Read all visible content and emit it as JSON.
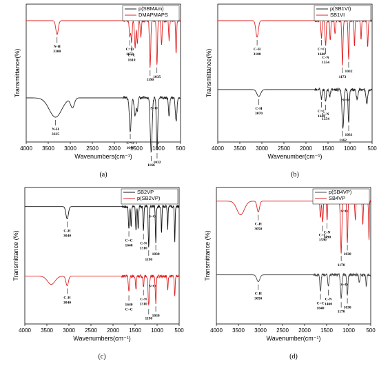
{
  "chart_data": [
    {
      "panel": "(a)",
      "type": "line",
      "xlabel": "Wavenumbers(cm⁻¹)",
      "ylabel": "Transmittance(%)",
      "xlim": [
        4000,
        500
      ],
      "xticks": [
        4000,
        3500,
        3000,
        2500,
        2000,
        1500,
        1000,
        500
      ],
      "legend_position": "top-right",
      "series": [
        {
          "name": "p(SBMAm)",
          "color": "#222222",
          "offset": 0.32,
          "dips": [
            {
              "x": 3335,
              "depth": 0.14,
              "width": 200
            },
            {
              "x": 2950,
              "depth": 0.07,
              "width": 60
            },
            {
              "x": 1640,
              "depth": 0.24,
              "width": 30
            },
            {
              "x": 1530,
              "depth": 0.13,
              "width": 30
            },
            {
              "x": 1480,
              "depth": 0.09,
              "width": 20
            },
            {
              "x": 1166,
              "depth": 0.4,
              "width": 30
            },
            {
              "x": 1032,
              "depth": 0.38,
              "width": 22
            },
            {
              "x": 760,
              "depth": 0.13,
              "width": 20
            },
            {
              "x": 600,
              "depth": 0.17,
              "width": 25
            }
          ],
          "annotations": [
            {
              "x": 3335,
              "text": "N-H\n3335"
            },
            {
              "x": 1640,
              "text": "C=O\n1640"
            },
            {
              "x": 1166,
              "text": "1166"
            },
            {
              "x": 1032,
              "text": "1032"
            },
            {
              "x": 1100,
              "text": "S=O"
            }
          ]
        },
        {
          "name": "DMAPMAPS",
          "color": "#e02020",
          "offset": 0.88,
          "dips": [
            {
              "x": 3300,
              "depth": 0.1,
              "width": 40
            },
            {
              "x": 1650,
              "depth": 0.12,
              "width": 20
            },
            {
              "x": 1610,
              "depth": 0.16,
              "width": 18
            },
            {
              "x": 1530,
              "depth": 0.2,
              "width": 20
            },
            {
              "x": 1480,
              "depth": 0.16,
              "width": 20
            },
            {
              "x": 1400,
              "depth": 0.12,
              "width": 18
            },
            {
              "x": 1190,
              "depth": 0.34,
              "width": 20
            },
            {
              "x": 1035,
              "depth": 0.32,
              "width": 18
            },
            {
              "x": 930,
              "depth": 0.18,
              "width": 15
            },
            {
              "x": 760,
              "depth": 0.14,
              "width": 15
            },
            {
              "x": 600,
              "depth": 0.24,
              "width": 15
            }
          ],
          "annotations": [
            {
              "x": 3300,
              "text": "N-H\n3300"
            },
            {
              "x": 1650,
              "text": "C=O\n1650"
            },
            {
              "x": 1610,
              "text": "C=C\n1610"
            },
            {
              "x": 1190,
              "text": "1190"
            },
            {
              "x": 1035,
              "text": "1035"
            }
          ]
        }
      ],
      "caption": "(a)"
    },
    {
      "panel": "(b)",
      "type": "line",
      "xlabel": "Wavenumber(cm⁻¹)",
      "ylabel": "Transmittance(%)",
      "xlim": [
        4000,
        500
      ],
      "xticks": [
        4000,
        3500,
        3000,
        2500,
        2000,
        1500,
        1000,
        500
      ],
      "legend_position": "top-right",
      "series": [
        {
          "name": "p(SB1VI)",
          "color": "#222222",
          "offset": 0.38,
          "dips": [
            {
              "x": 3070,
              "depth": 0.05,
              "width": 60
            },
            {
              "x": 1648,
              "depth": 0.07,
              "width": 20
            },
            {
              "x": 1554,
              "depth": 0.09,
              "width": 20
            },
            {
              "x": 1460,
              "depth": 0.05,
              "width": 20
            },
            {
              "x": 1162,
              "depth": 0.28,
              "width": 28
            },
            {
              "x": 1031,
              "depth": 0.24,
              "width": 20
            },
            {
              "x": 840,
              "depth": 0.07,
              "width": 25
            },
            {
              "x": 620,
              "depth": 0.1,
              "width": 25
            }
          ],
          "annotations": [
            {
              "x": 3070,
              "text": "C-H\n3070"
            },
            {
              "x": 1648,
              "text": "C=C\n1648"
            },
            {
              "x": 1554,
              "text": "C-N\n1554"
            },
            {
              "x": 1162,
              "text": "1162"
            },
            {
              "x": 1031,
              "text": "1031"
            },
            {
              "x": 1100,
              "text": "S=O"
            }
          ]
        },
        {
          "name": "SB1VI",
          "color": "#e02020",
          "offset": 0.88,
          "dips": [
            {
              "x": 3108,
              "depth": 0.12,
              "width": 40
            },
            {
              "x": 1648,
              "depth": 0.12,
              "width": 18
            },
            {
              "x": 1554,
              "depth": 0.18,
              "width": 18
            },
            {
              "x": 1450,
              "depth": 0.14,
              "width": 16
            },
            {
              "x": 1340,
              "depth": 0.1,
              "width": 16
            },
            {
              "x": 1173,
              "depth": 0.32,
              "width": 18
            },
            {
              "x": 1032,
              "depth": 0.28,
              "width": 16
            },
            {
              "x": 900,
              "depth": 0.18,
              "width": 14
            },
            {
              "x": 750,
              "depth": 0.14,
              "width": 14
            },
            {
              "x": 600,
              "depth": 0.2,
              "width": 14
            }
          ],
          "annotations": [
            {
              "x": 3108,
              "text": "C-H\n3108"
            },
            {
              "x": 1648,
              "text": "C=C\n1648"
            },
            {
              "x": 1554,
              "text": "C-N\n1554"
            },
            {
              "x": 1173,
              "text": "1173"
            },
            {
              "x": 1032,
              "text": "1032"
            }
          ]
        }
      ],
      "caption": "(b)"
    },
    {
      "panel": "(c)",
      "type": "line",
      "xlabel": "Wavenumbers(cm⁻¹)",
      "ylabel": "Transmittance (%)",
      "xlim": [
        4000,
        500
      ],
      "xticks": [
        4000,
        3500,
        3000,
        2500,
        2000,
        1500,
        1000,
        500
      ],
      "legend_position": "top-right",
      "series": [
        {
          "name": "SB2VP",
          "color": "#111111",
          "offset": 0.86,
          "dips": [
            {
              "x": 3040,
              "depth": 0.09,
              "width": 40
            },
            {
              "x": 1640,
              "depth": 0.16,
              "width": 16
            },
            {
              "x": 1590,
              "depth": 0.14,
              "width": 14
            },
            {
              "x": 1480,
              "depth": 0.18,
              "width": 14
            },
            {
              "x": 1430,
              "depth": 0.16,
              "width": 14
            },
            {
              "x": 1310,
              "depth": 0.18,
              "width": 14
            },
            {
              "x": 1190,
              "depth": 0.3,
              "width": 16
            },
            {
              "x": 1030,
              "depth": 0.26,
              "width": 14
            },
            {
              "x": 900,
              "depth": 0.2,
              "width": 12
            },
            {
              "x": 760,
              "depth": 0.16,
              "width": 12
            },
            {
              "x": 600,
              "depth": 0.26,
              "width": 12
            }
          ],
          "annotations": [
            {
              "x": 3040,
              "text": "C-H\n3040"
            },
            {
              "x": 1640,
              "text": "C=C\n1640"
            },
            {
              "x": 1310,
              "text": "C-N\n1310"
            },
            {
              "x": 1190,
              "text": "1190"
            },
            {
              "x": 1030,
              "text": "1030"
            },
            {
              "x": 1110,
              "text": "S=O"
            }
          ]
        },
        {
          "name": "p(SB2VP)",
          "color": "#e02020",
          "offset": 0.35,
          "dips": [
            {
              "x": 3400,
              "depth": 0.06,
              "width": 120
            },
            {
              "x": 3040,
              "depth": 0.07,
              "width": 40
            },
            {
              "x": 1640,
              "depth": 0.12,
              "width": 18
            },
            {
              "x": 1480,
              "depth": 0.1,
              "width": 16
            },
            {
              "x": 1310,
              "depth": 0.08,
              "width": 16
            },
            {
              "x": 1190,
              "depth": 0.22,
              "width": 20
            },
            {
              "x": 1030,
              "depth": 0.2,
              "width": 16
            },
            {
              "x": 760,
              "depth": 0.1,
              "width": 14
            },
            {
              "x": 600,
              "depth": 0.14,
              "width": 14
            }
          ],
          "annotations": [
            {
              "x": 3040,
              "text": "C-H\n3040"
            },
            {
              "x": 1640,
              "text": "1640\nC=C"
            },
            {
              "x": 1310,
              "text": "C-N\n1310"
            },
            {
              "x": 1190,
              "text": "1190"
            },
            {
              "x": 1030,
              "text": "1030"
            },
            {
              "x": 1110,
              "text": "S=O"
            }
          ]
        }
      ],
      "caption": "(c)"
    },
    {
      "panel": "(d)",
      "type": "line",
      "xlabel": "Wavenumber(cm⁻¹)",
      "ylabel": "Transmittance (%)",
      "xlim": [
        4000,
        500
      ],
      "xticks": [
        4000,
        3500,
        3000,
        2500,
        2000,
        1500,
        1000,
        500
      ],
      "legend_position": "top-right",
      "series": [
        {
          "name": "p(SB4VP)",
          "color": "#444444",
          "offset": 0.36,
          "dips": [
            {
              "x": 3050,
              "depth": 0.05,
              "width": 50
            },
            {
              "x": 1640,
              "depth": 0.12,
              "width": 18
            },
            {
              "x": 1460,
              "depth": 0.09,
              "width": 18
            },
            {
              "x": 1170,
              "depth": 0.18,
              "width": 22
            },
            {
              "x": 1030,
              "depth": 0.15,
              "width": 18
            },
            {
              "x": 760,
              "depth": 0.06,
              "width": 16
            },
            {
              "x": 600,
              "depth": 0.08,
              "width": 16
            }
          ],
          "annotations": [
            {
              "x": 3050,
              "text": "C-H\n3050"
            },
            {
              "x": 1640,
              "text": "C=C\n1640"
            },
            {
              "x": 1460,
              "text": "C-N\n1460"
            },
            {
              "x": 1170,
              "text": "1170"
            },
            {
              "x": 1030,
              "text": "1030"
            },
            {
              "x": 1100,
              "text": "S=O"
            }
          ]
        },
        {
          "name": "SB4VP",
          "color": "#e02020",
          "offset": 0.9,
          "dips": [
            {
              "x": 3450,
              "depth": 0.1,
              "width": 120
            },
            {
              "x": 3050,
              "depth": 0.08,
              "width": 40
            },
            {
              "x": 1640,
              "depth": 0.12,
              "width": 16
            },
            {
              "x": 1590,
              "depth": 0.16,
              "width": 16
            },
            {
              "x": 1490,
              "depth": 0.14,
              "width": 14
            },
            {
              "x": 1170,
              "depth": 0.38,
              "width": 22
            },
            {
              "x": 1030,
              "depth": 0.3,
              "width": 16
            },
            {
              "x": 850,
              "depth": 0.14,
              "width": 14
            },
            {
              "x": 680,
              "depth": 0.18,
              "width": 14
            },
            {
              "x": 540,
              "depth": 0.3,
              "width": 12
            }
          ],
          "annotations": [
            {
              "x": 3050,
              "text": "C-H\n3050"
            },
            {
              "x": 1590,
              "text": "C=C\n1590"
            },
            {
              "x": 1490,
              "text": "C-N\n1490"
            },
            {
              "x": 1170,
              "text": "1170"
            },
            {
              "x": 1030,
              "text": "1030"
            },
            {
              "x": 1100,
              "text": "S=O"
            }
          ]
        }
      ],
      "caption": "(d)"
    }
  ]
}
